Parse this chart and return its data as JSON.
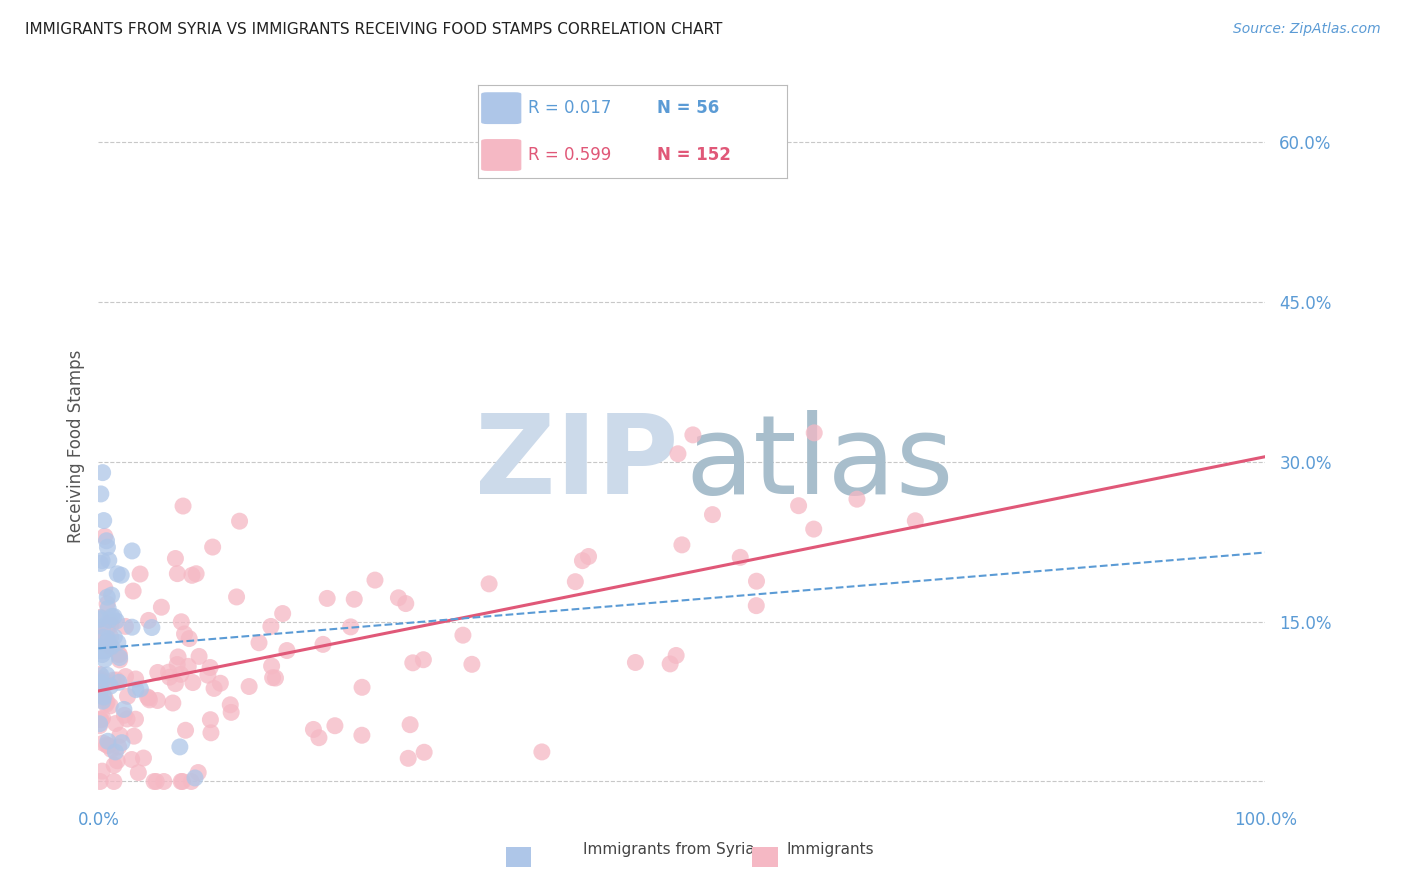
{
  "title": "IMMIGRANTS FROM SYRIA VS IMMIGRANTS RECEIVING FOOD STAMPS CORRELATION CHART",
  "source": "Source: ZipAtlas.com",
  "ylabel": "Receiving Food Stamps",
  "xlim": [
    0.0,
    1.0
  ],
  "ylim": [
    -0.02,
    0.65
  ],
  "yticks": [
    0.0,
    0.15,
    0.3,
    0.45,
    0.6
  ],
  "yticklabels": [
    "",
    "15.0%",
    "30.0%",
    "45.0%",
    "60.0%"
  ],
  "grid_color": "#c8c8c8",
  "background_color": "#ffffff",
  "axis_color": "#5b9bd5",
  "scatter_color_blue": "#aec6e8",
  "scatter_color_pink": "#f5b8c4",
  "line_color_blue": "#5b9bd5",
  "line_color_pink": "#e05878",
  "legend_r_blue": "0.017",
  "legend_n_blue": "56",
  "legend_r_pink": "0.599",
  "legend_n_pink": "152",
  "blue_line_x0": 0.0,
  "blue_line_x1": 1.0,
  "blue_line_y0": 0.125,
  "blue_line_y1": 0.215,
  "pink_line_x0": 0.0,
  "pink_line_x1": 1.0,
  "pink_line_y0": 0.085,
  "pink_line_y1": 0.305
}
